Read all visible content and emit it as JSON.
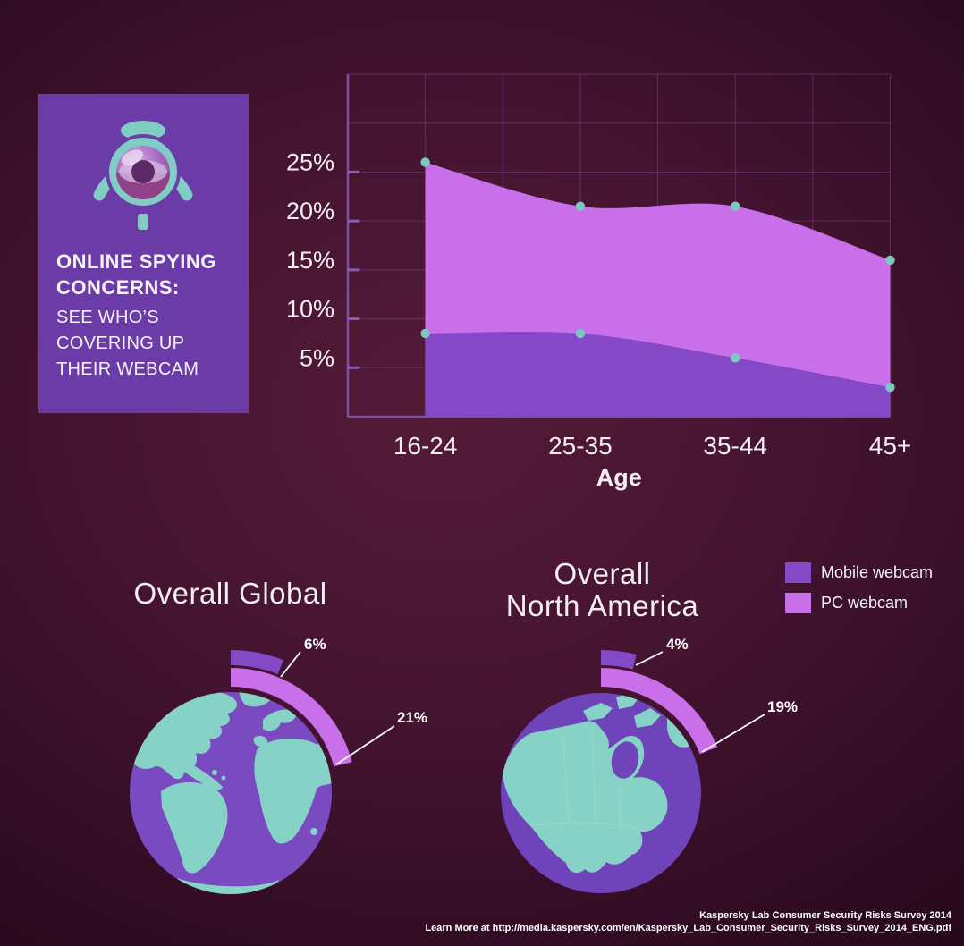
{
  "title_card": {
    "icon": "webcam-icon",
    "title_line1": "ONLINE SPYING",
    "title_line2": "CONCERNS:",
    "subtitle_line1": "SEE WHO’S",
    "subtitle_line2": "COVERING UP",
    "subtitle_line3": "THEIR WEBCAM",
    "background_color": "#6b3ca8"
  },
  "chart_data": [
    {
      "id": "webcam-coverup-by-age",
      "type": "area",
      "title": "",
      "xlabel": "Age",
      "ylabel": "",
      "categories": [
        "16-24",
        "25-35",
        "35-44",
        "45+"
      ],
      "series": [
        {
          "name": "PC webcam",
          "values": [
            26,
            21.5,
            21.5,
            16
          ],
          "color": "#c86fe9"
        },
        {
          "name": "Mobile webcam",
          "values": [
            8.5,
            8.5,
            6,
            3
          ],
          "color": "#8349c6"
        }
      ],
      "ylim": [
        0,
        35
      ],
      "grid": true,
      "y_ticks": [
        {
          "value": 5,
          "label": "5%"
        },
        {
          "value": 10,
          "label": "10%"
        },
        {
          "value": 15,
          "label": "15%"
        },
        {
          "value": 20,
          "label": "20%"
        },
        {
          "value": 25,
          "label": "25%"
        }
      ],
      "marker_color": "#7cc9c1"
    },
    {
      "id": "overall-global",
      "type": "pie",
      "title": "Overall Global",
      "unit": "%",
      "segments": [
        {
          "name": "Mobile webcam",
          "value": 6,
          "label": "6%",
          "color": "#8349c6"
        },
        {
          "name": "PC webcam",
          "value": 21,
          "label": "21%",
          "color": "#c86fe9"
        }
      ]
    },
    {
      "id": "overall-north-america",
      "type": "pie",
      "title": "Overall North America",
      "title_lines": [
        "Overall",
        "North America"
      ],
      "unit": "%",
      "segments": [
        {
          "name": "Mobile webcam",
          "value": 4,
          "label": "4%",
          "color": "#8349c6"
        },
        {
          "name": "PC webcam",
          "value": 19,
          "label": "19%",
          "color": "#c86fe9"
        }
      ]
    }
  ],
  "legend": {
    "items": [
      {
        "label": "Mobile webcam",
        "color": "#8349c6"
      },
      {
        "label": "PC webcam",
        "color": "#c86fe9"
      }
    ]
  },
  "source": {
    "line1": "Kaspersky Lab Consumer Security Risks Survey 2014",
    "line2": "Learn More at http://media.kaspersky.com/en/Kaspersky_Lab_Consumer_Security_Risks_Survey_2014_ENG.pdf"
  },
  "colors": {
    "mobile": "#8349c6",
    "pc": "#c86fe9",
    "marker": "#7cc9c1",
    "card": "#6b3ca8",
    "globe_water_global": "#7a4bc0",
    "globe_water_na": "#6f43b9",
    "globe_land": "#87d2c7",
    "grid": "rgba(158,106,196,0.33)",
    "axis": "#7b51a6"
  }
}
